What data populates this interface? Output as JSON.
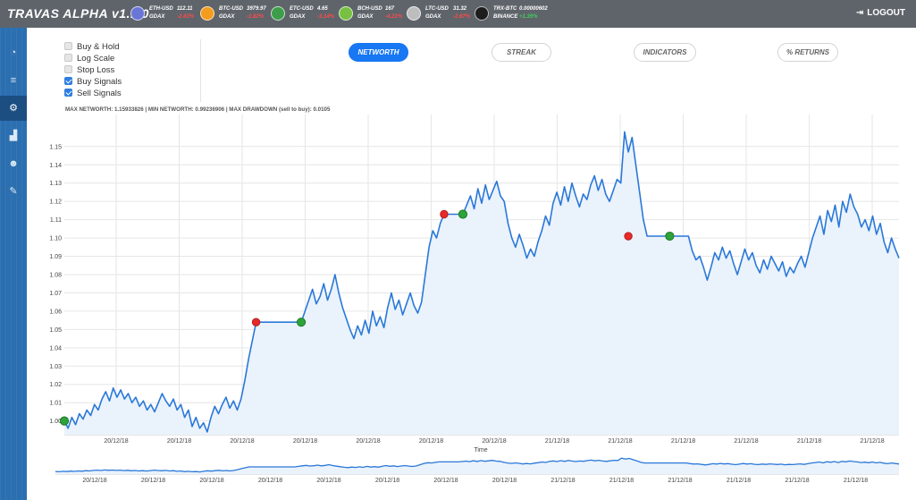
{
  "app": {
    "title": "TRAVAS ALPHA v1.1.0"
  },
  "tickers": [
    {
      "symbol": "ETH-USD",
      "exchange": "GDAX",
      "price": "112.11",
      "change": "-2.43%",
      "change_positive": false,
      "icon": "ethereum-icon",
      "color": "#6a76d6"
    },
    {
      "symbol": "BTC-USD",
      "exchange": "GDAX",
      "price": "3979.97",
      "change": "-1.82%",
      "change_positive": false,
      "icon": "bitcoin-icon",
      "color": "#f39c1e"
    },
    {
      "symbol": "ETC-USD",
      "exchange": "GDAX",
      "price": "4.65",
      "change": "-3.14%",
      "change_positive": false,
      "icon": "ethereum-classic-icon",
      "color": "#3e9d4a"
    },
    {
      "symbol": "BCH-USD",
      "exchange": "GDAX",
      "price": "167",
      "change": "-4.21%",
      "change_positive": false,
      "icon": "bitcoin-cash-icon",
      "color": "#78c042"
    },
    {
      "symbol": "LTC-USD",
      "exchange": "GDAX",
      "price": "31.32",
      "change": "-2.67%",
      "change_positive": false,
      "icon": "litecoin-icon",
      "color": "#bdbdbd"
    },
    {
      "symbol": "TRX-BTC",
      "exchange": "BINANCE",
      "price": "0.00000602",
      "change": "+1.35%",
      "change_positive": true,
      "icon": "tron-icon",
      "color": "#1d1d1d"
    }
  ],
  "logout": {
    "label": "LOGOUT",
    "icon": "logout-icon"
  },
  "sidebar": [
    {
      "name": "dashboard",
      "icon": "dashboard-icon",
      "glyph": "◔",
      "active": false
    },
    {
      "name": "settings",
      "icon": "sliders-icon",
      "glyph": "≡",
      "active": false
    },
    {
      "name": "strategies",
      "icon": "gears-icon",
      "glyph": "⚙",
      "active": true
    },
    {
      "name": "analytics",
      "icon": "area-chart-icon",
      "glyph": "▟",
      "active": false
    },
    {
      "name": "users",
      "icon": "users-icon",
      "glyph": "☻",
      "active": false
    },
    {
      "name": "tools",
      "icon": "wrench-icon",
      "glyph": "✎",
      "active": false
    }
  ],
  "options": [
    {
      "label": "Buy & Hold",
      "checked": false
    },
    {
      "label": "Log Scale",
      "checked": false
    },
    {
      "label": "Stop Loss",
      "checked": false
    },
    {
      "label": "Buy Signals",
      "checked": true
    },
    {
      "label": "Sell Signals",
      "checked": true
    }
  ],
  "tabs": [
    {
      "label": "NETWORTH",
      "active": true
    },
    {
      "label": "STREAK",
      "active": false
    },
    {
      "label": "INDICATORS",
      "active": false
    },
    {
      "label": "% RETURNS",
      "active": false
    }
  ],
  "stats_text": "MAX NETWORTH: 1.15933826 | MIN NETWORTH: 0.99236906 | MAX DRAWDOWN (sell to buy): 0.0105",
  "chart_data": {
    "type": "line",
    "xlabel": "Time",
    "ylabel": "",
    "ylim": [
      0.9925,
      1.1675
    ],
    "yticks": [
      1.0,
      1.01,
      1.02,
      1.03,
      1.04,
      1.05,
      1.06,
      1.07,
      1.08,
      1.09,
      1.1,
      1.11,
      1.12,
      1.13,
      1.14,
      1.15
    ],
    "xticks": [
      "20/12/18",
      "20/12/18",
      "20/12/18",
      "20/12/18",
      "20/12/18",
      "20/12/18",
      "20/12/18",
      "21/12/18",
      "21/12/18",
      "21/12/18",
      "21/12/18",
      "21/12/18",
      "21/12/18",
      "21/12/18"
    ],
    "navigator_xticks": [
      "20/12/18",
      "20/12/18",
      "20/12/18",
      "20/12/18",
      "20/12/18",
      "20/12/18",
      "20/12/18",
      "20/12/18",
      "21/12/18",
      "21/12/18",
      "21/12/18",
      "21/12/18",
      "21/12/18",
      "21/12/18"
    ],
    "grid": true,
    "series": [
      {
        "values": [
          1.0,
          0.996,
          1.002,
          0.998,
          1.004,
          1.001,
          1.006,
          1.003,
          1.009,
          1.006,
          1.012,
          1.016,
          1.011,
          1.018,
          1.013,
          1.017,
          1.012,
          1.015,
          1.01,
          1.013,
          1.008,
          1.011,
          1.006,
          1.009,
          1.005,
          1.01,
          1.015,
          1.011,
          1.008,
          1.012,
          1.006,
          1.009,
          1.002,
          1.006,
          0.997,
          1.002,
          0.996,
          0.999,
          0.994,
          1.002,
          1.008,
          1.004,
          1.009,
          1.013,
          1.007,
          1.011,
          1.006,
          1.012,
          1.022,
          1.034,
          1.044,
          1.054,
          1.054,
          1.054,
          1.054,
          1.054,
          1.054,
          1.054,
          1.054,
          1.054,
          1.054,
          1.054,
          1.054,
          1.054,
          1.06,
          1.066,
          1.072,
          1.064,
          1.068,
          1.075,
          1.066,
          1.072,
          1.08,
          1.07,
          1.062,
          1.056,
          1.05,
          1.045,
          1.052,
          1.047,
          1.055,
          1.048,
          1.06,
          1.052,
          1.057,
          1.051,
          1.062,
          1.07,
          1.061,
          1.066,
          1.058,
          1.064,
          1.07,
          1.063,
          1.059,
          1.065,
          1.08,
          1.095,
          1.104,
          1.1,
          1.108,
          1.113,
          1.113,
          1.113,
          1.113,
          1.113,
          1.113,
          1.118,
          1.123,
          1.116,
          1.127,
          1.119,
          1.129,
          1.121,
          1.126,
          1.131,
          1.123,
          1.12,
          1.108,
          1.1,
          1.095,
          1.102,
          1.096,
          1.089,
          1.094,
          1.09,
          1.098,
          1.104,
          1.112,
          1.107,
          1.119,
          1.125,
          1.118,
          1.128,
          1.12,
          1.13,
          1.123,
          1.117,
          1.124,
          1.121,
          1.129,
          1.134,
          1.126,
          1.132,
          1.124,
          1.12,
          1.126,
          1.132,
          1.13,
          1.158,
          1.147,
          1.155,
          1.14,
          1.125,
          1.11,
          1.101,
          1.101,
          1.101,
          1.101,
          1.101,
          1.101,
          1.101,
          1.101,
          1.101,
          1.101,
          1.101,
          1.101,
          1.093,
          1.088,
          1.09,
          1.084,
          1.077,
          1.084,
          1.092,
          1.088,
          1.095,
          1.089,
          1.093,
          1.086,
          1.08,
          1.087,
          1.094,
          1.088,
          1.092,
          1.085,
          1.081,
          1.088,
          1.083,
          1.09,
          1.086,
          1.082,
          1.087,
          1.079,
          1.084,
          1.081,
          1.086,
          1.09,
          1.084,
          1.092,
          1.1,
          1.106,
          1.112,
          1.102,
          1.115,
          1.109,
          1.118,
          1.106,
          1.12,
          1.114,
          1.124,
          1.117,
          1.113,
          1.106,
          1.11,
          1.104,
          1.112,
          1.102,
          1.108,
          1.098,
          1.092,
          1.1,
          1.094,
          1.089
        ]
      }
    ],
    "buy_signals": [
      {
        "i": 0,
        "y": 1.0
      },
      {
        "i": 63,
        "y": 1.054
      },
      {
        "i": 106,
        "y": 1.113
      },
      {
        "i": 161,
        "y": 1.101
      }
    ],
    "sell_signals": [
      {
        "i": 51,
        "y": 1.054
      },
      {
        "i": 101,
        "y": 1.113
      },
      {
        "i": 150,
        "y": 1.101
      }
    ],
    "colors": {
      "line": "#2a78d8",
      "fill": "#eaf2fc",
      "buy": "#2ea33a",
      "sell": "#e82a2a",
      "grid": "#e6e6e6"
    }
  }
}
